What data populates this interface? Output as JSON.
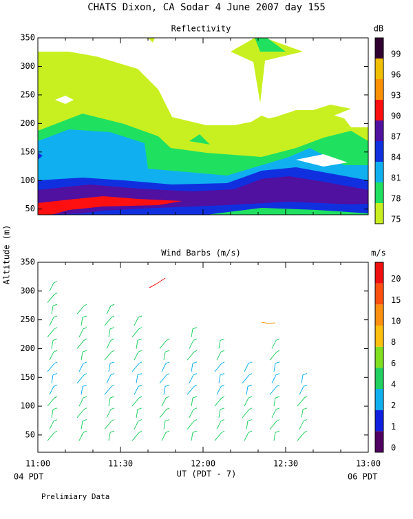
{
  "title": "CHATS Dixon, CA  Sodar   4 June 2007   day 155",
  "start_label": "04 PDT",
  "end_label": "06 PDT",
  "note": "Prelimiary Data",
  "chart_data": [
    {
      "type": "contour",
      "title": "Reflectivity",
      "xlim": [
        660,
        780
      ],
      "xticks": [
        660,
        690,
        720,
        750,
        780
      ],
      "ylim": [
        40,
        350
      ],
      "yticks": [
        50,
        100,
        150,
        200,
        250,
        300,
        350
      ],
      "colorbar": {
        "unit": "dB",
        "levels": [
          75,
          78,
          81,
          84,
          87,
          90,
          93,
          96,
          99
        ],
        "colors": [
          "#c8f020",
          "#20e060",
          "#10b0f0",
          "#1030e0",
          "#5010a0",
          "#ff1010",
          "#ff9000",
          "#f0c000",
          "#300030"
        ]
      }
    },
    {
      "type": "barbs",
      "title": "Wind Barbs (m/s)",
      "ylabel": "Altitude (m)",
      "xlabel": "UT  (PDT - 7)",
      "xlim": [
        660,
        780
      ],
      "xticks": [
        {
          "value": 660,
          "label": "11:00"
        },
        {
          "value": 690,
          "label": "11:30"
        },
        {
          "value": 720,
          "label": "12:00"
        },
        {
          "value": 750,
          "label": "12:30"
        },
        {
          "value": 780,
          "label": "13:00"
        }
      ],
      "ylim": [
        20,
        350
      ],
      "yticks": [
        50,
        100,
        150,
        200,
        250,
        300,
        350
      ],
      "colorbar": {
        "unit": "m/s",
        "levels": [
          0,
          1,
          2,
          4,
          6,
          8,
          10,
          15,
          20
        ],
        "colors": [
          "#500060",
          "#1020e0",
          "#10b0f0",
          "#20d060",
          "#80e020",
          "#ffc010",
          "#ff9010",
          "#ff5010",
          "#f01010"
        ]
      }
    }
  ]
}
